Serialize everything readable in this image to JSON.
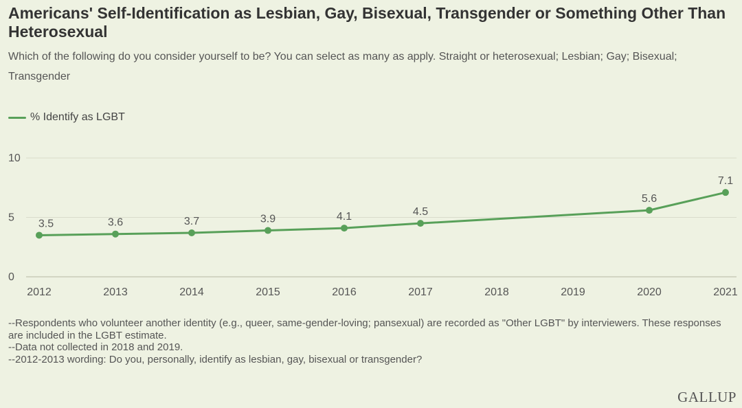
{
  "header": {
    "title": "Americans' Self-Identification as Lesbian, Gay, Bisexual, Transgender or Something Other Than Heterosexual",
    "subtitle": "Which of the following do you consider yourself to be? You can select as many as apply. Straight or heterosexual; Lesbian; Gay; Bisexual; Transgender"
  },
  "legend": {
    "label": "% Identify as LGBT"
  },
  "colors": {
    "series": "#58a059",
    "grid": "#d9dccb",
    "axis": "#c8cbb8",
    "text": "#555555"
  },
  "chart_data": {
    "type": "line",
    "title": "Americans' Self-Identification as Lesbian, Gay, Bisexual, Transgender or Something Other Than Heterosexual",
    "xlabel": "",
    "ylabel": "",
    "ylim": [
      0,
      10
    ],
    "yticks": [
      0,
      5,
      10
    ],
    "categories": [
      "2012",
      "2013",
      "2014",
      "2015",
      "2016",
      "2017",
      "2018",
      "2019",
      "2020",
      "2021"
    ],
    "series": [
      {
        "name": "% Identify as LGBT",
        "x": [
          "2012",
          "2013",
          "2014",
          "2015",
          "2016",
          "2017",
          "2020",
          "2021"
        ],
        "values": [
          3.5,
          3.6,
          3.7,
          3.9,
          4.1,
          4.5,
          5.6,
          7.1
        ],
        "labels": [
          "3.5",
          "3.6",
          "3.7",
          "3.9",
          "4.1",
          "4.5",
          "5.6",
          "7.1"
        ]
      }
    ]
  },
  "notes": [
    "--Respondents who volunteer another identity (e.g., queer, same-gender-loving; pansexual) are recorded as \"Other LGBT\" by interviewers. These responses are included in the LGBT estimate.",
    "--Data not collected in 2018 and 2019.",
    "--2012-2013 wording: Do you, personally, identify as lesbian, gay, bisexual or transgender?"
  ],
  "brand": {
    "logo_text": "GALLUP"
  }
}
